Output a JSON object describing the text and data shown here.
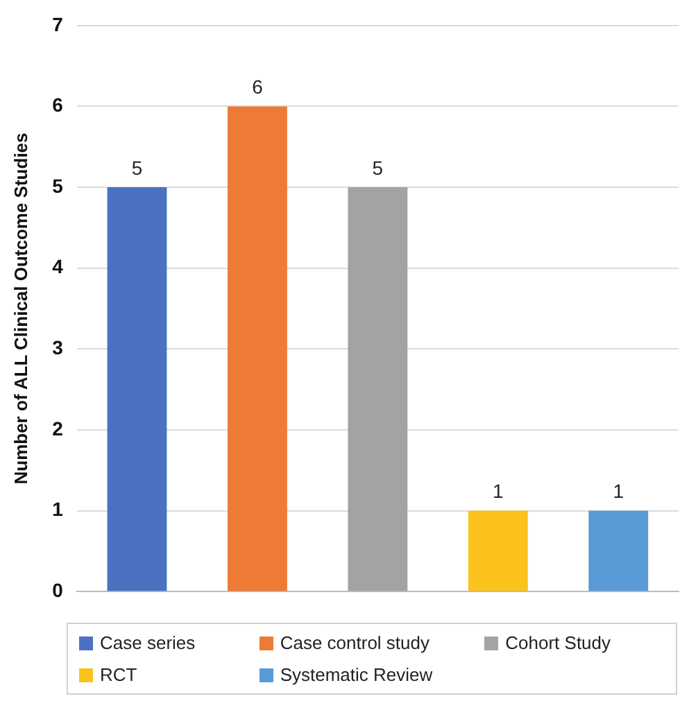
{
  "chart_data": {
    "type": "bar",
    "ylabel": "Number of ALL Clinical Outcome Studies",
    "categories": [
      null,
      null,
      null,
      null,
      null
    ],
    "series": [
      {
        "name": "Case series",
        "color": "#4a72c0",
        "values": [
          5,
          null,
          null,
          null,
          null
        ]
      },
      {
        "name": "Case control study",
        "color": "#ed7a35",
        "values": [
          null,
          6,
          null,
          null,
          null
        ]
      },
      {
        "name": "Cohort Study",
        "color": "#a3a3a3",
        "values": [
          null,
          null,
          5,
          null,
          null
        ]
      },
      {
        "name": "RCT",
        "color": "#fcc21c",
        "values": [
          null,
          null,
          null,
          1,
          null
        ]
      },
      {
        "name": "Systematic Review",
        "color": "#589ad6",
        "values": [
          null,
          null,
          null,
          null,
          1
        ]
      }
    ],
    "ylim": [
      0,
      7
    ],
    "yticks": [
      0,
      1,
      2,
      3,
      4,
      5,
      6,
      7
    ],
    "grid": "y",
    "legend": "bottom",
    "data_labels": true
  }
}
